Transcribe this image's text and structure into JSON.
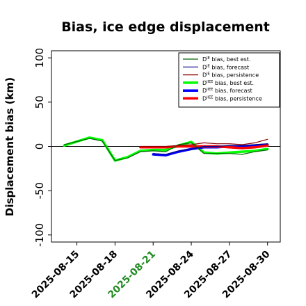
{
  "chart_data": {
    "type": "line",
    "title": "Bias, ice edge displacement",
    "xlabel": "",
    "ylabel": "Displacement bias (km)",
    "x": [
      "2025-08-14",
      "2025-08-16",
      "2025-08-17",
      "2025-08-18",
      "2025-08-19",
      "2025-08-20",
      "2025-08-21",
      "2025-08-22",
      "2025-08-23",
      "2025-08-24",
      "2025-08-25",
      "2025-08-26",
      "2025-08-27",
      "2025-08-28",
      "2025-08-29",
      "2025-08-30"
    ],
    "xlim": [
      "2025-08-13",
      "2025-08-31"
    ],
    "ylim": [
      -108,
      108
    ],
    "yticks": [
      -100,
      -50,
      0,
      50,
      100
    ],
    "xticks": [
      {
        "label": "2025-08-15",
        "date": "2025-08-15",
        "color": "#000000"
      },
      {
        "label": "2025-08-18",
        "date": "2025-08-18",
        "color": "#000000"
      },
      {
        "label": "2025-08-21",
        "date": "2025-08-21",
        "color": "#228b22"
      },
      {
        "label": "2025-08-24",
        "date": "2025-08-24",
        "color": "#000000"
      },
      {
        "label": "2025-08-27",
        "date": "2025-08-27",
        "color": "#000000"
      },
      {
        "label": "2025-08-30",
        "date": "2025-08-30",
        "color": "#000000"
      }
    ],
    "zero_line": true,
    "grid": false,
    "legend_position": "top-right",
    "series": [
      {
        "name": "D^IE bias, best est.",
        "sup": "IE",
        "pre": "D",
        "post": " bias, best est.",
        "color": "#006400",
        "width": 1.2,
        "x": [
          "2025-08-14",
          "2025-08-16",
          "2025-08-17",
          "2025-08-18",
          "2025-08-19",
          "2025-08-20",
          "2025-08-21",
          "2025-08-22",
          "2025-08-23",
          "2025-08-24",
          "2025-08-25",
          "2025-08-26",
          "2025-08-27",
          "2025-08-28",
          "2025-08-29",
          "2025-08-30"
        ],
        "values": [
          2,
          9,
          6,
          -16,
          -13,
          -6,
          -5,
          -6,
          2,
          4,
          -8,
          -8,
          -8,
          -9,
          -6,
          -4
        ]
      },
      {
        "name": "D^IE bias, forecast",
        "sup": "IE",
        "pre": "D",
        "post": " bias, forecast",
        "color": "#00008b",
        "width": 1.2,
        "x": [
          "2025-08-21",
          "2025-08-22",
          "2025-08-23",
          "2025-08-24",
          "2025-08-25",
          "2025-08-26",
          "2025-08-27",
          "2025-08-28",
          "2025-08-29",
          "2025-08-30"
        ],
        "values": [
          -8,
          -9,
          -5,
          -3,
          0,
          0,
          1,
          1,
          2,
          3
        ]
      },
      {
        "name": "D^IE bias, persistence",
        "sup": "IE",
        "pre": "D",
        "post": " bias, persistence",
        "color": "#8b0000",
        "width": 1.2,
        "x": [
          "2025-08-20",
          "2025-08-21",
          "2025-08-22",
          "2025-08-23",
          "2025-08-24",
          "2025-08-25",
          "2025-08-26",
          "2025-08-27",
          "2025-08-28",
          "2025-08-29",
          "2025-08-30"
        ],
        "values": [
          0,
          0,
          0,
          1,
          2,
          4,
          3,
          3,
          2,
          4,
          8
        ]
      },
      {
        "name": "D^IIEE bias, best est.",
        "sup": "IIEE",
        "pre": "D",
        "post": " bias, best est.",
        "color": "#00ff00",
        "width": 3.5,
        "x": [
          "2025-08-14",
          "2025-08-16",
          "2025-08-17",
          "2025-08-18",
          "2025-08-19",
          "2025-08-20",
          "2025-08-21",
          "2025-08-22",
          "2025-08-23",
          "2025-08-24",
          "2025-08-25",
          "2025-08-26",
          "2025-08-27",
          "2025-08-28",
          "2025-08-29",
          "2025-08-30"
        ],
        "values": [
          1,
          10,
          7,
          -16,
          -12,
          -5,
          -4,
          -4,
          1,
          5,
          -7,
          -8,
          -7,
          -6,
          -5,
          -3
        ]
      },
      {
        "name": "D^IIEE bias, forecast",
        "sup": "IIEE",
        "pre": "D",
        "post": " bias, forecast",
        "color": "#0000ff",
        "width": 3.5,
        "x": [
          "2025-08-21",
          "2025-08-22",
          "2025-08-23",
          "2025-08-24",
          "2025-08-25",
          "2025-08-26",
          "2025-08-27",
          "2025-08-28",
          "2025-08-29",
          "2025-08-30"
        ],
        "values": [
          -9,
          -10,
          -6,
          -3,
          -1,
          -1,
          0,
          0,
          1,
          2
        ]
      },
      {
        "name": "D^IIEE bias, persistence",
        "sup": "IIEE",
        "pre": "D",
        "post": " bias, persistence",
        "color": "#ff0000",
        "width": 3.5,
        "x": [
          "2025-08-20",
          "2025-08-21",
          "2025-08-22",
          "2025-08-23",
          "2025-08-24",
          "2025-08-25",
          "2025-08-26",
          "2025-08-27",
          "2025-08-28",
          "2025-08-29",
          "2025-08-30"
        ],
        "values": [
          -1,
          -1,
          -1,
          0,
          0,
          0,
          0,
          -1,
          -2,
          -1,
          1
        ]
      }
    ]
  }
}
